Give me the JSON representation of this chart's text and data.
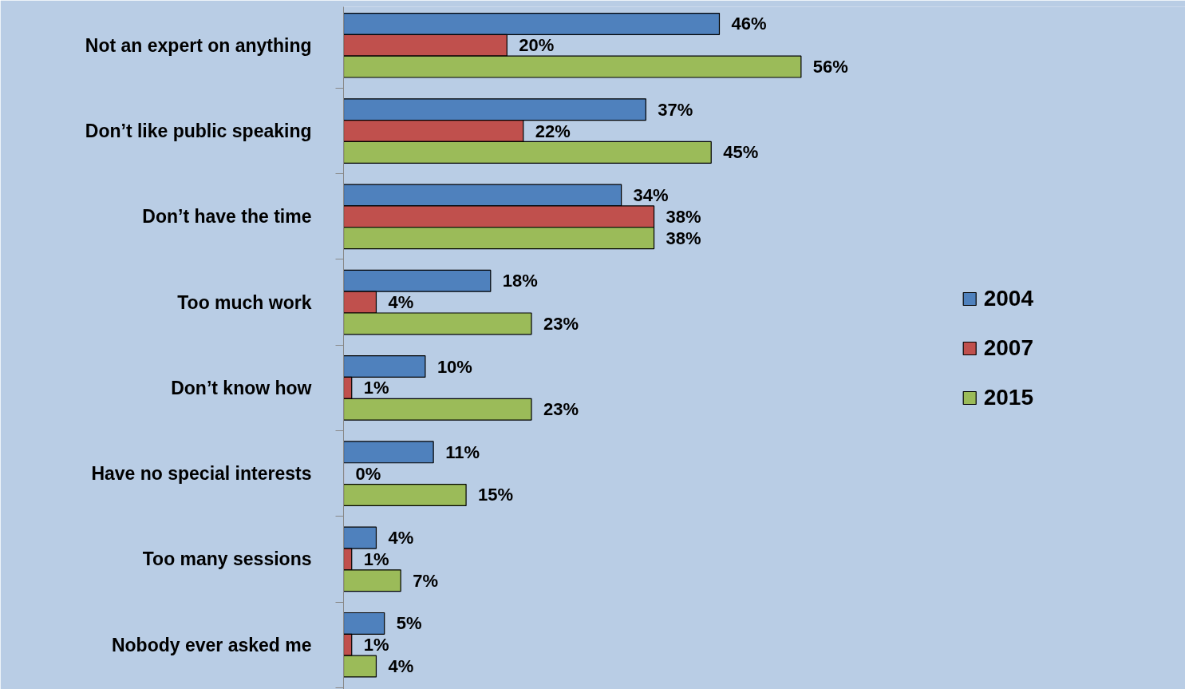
{
  "chart_data": {
    "type": "bar",
    "orientation": "horizontal",
    "categories": [
      "Not an expert on anything",
      "Don’t like public speaking",
      "Don’t have the time",
      "Too much work",
      "Don’t know how",
      "Have no special interests",
      "Too many sessions",
      "Nobody ever asked me"
    ],
    "series": [
      {
        "name": "2004",
        "color": "#4f81bd",
        "values": [
          46,
          37,
          34,
          18,
          10,
          11,
          4,
          5
        ],
        "value_labels": [
          "46%",
          "37%",
          "34%",
          "18%",
          "10%",
          "11%",
          "4%",
          "5%"
        ]
      },
      {
        "name": "2007",
        "color": "#c0504d",
        "values": [
          20,
          22,
          38,
          4,
          1,
          0,
          1,
          1
        ],
        "value_labels": [
          "20%",
          "22%",
          "38%",
          "4%",
          "1%",
          "0%",
          "1%",
          "1%"
        ]
      },
      {
        "name": "2015",
        "color": "#9bbb59",
        "values": [
          56,
          45,
          38,
          23,
          23,
          15,
          7,
          4
        ],
        "value_labels": [
          "56%",
          "45%",
          "38%",
          "23%",
          "23%",
          "15%",
          "7%",
          "4%"
        ]
      }
    ],
    "legend": "right",
    "grid": false,
    "tick_labels": "y"
  }
}
